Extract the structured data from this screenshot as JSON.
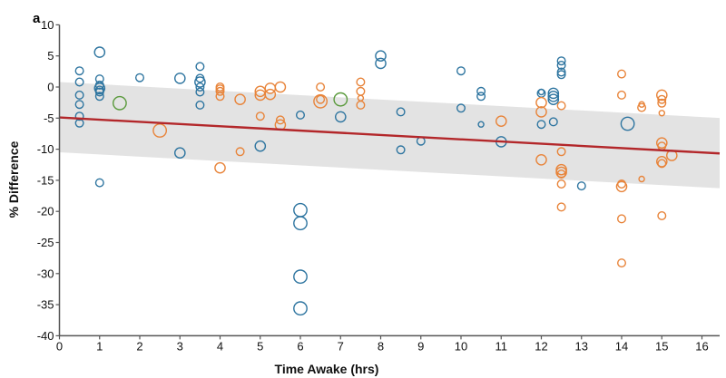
{
  "chart_data": {
    "type": "scatter",
    "panel_label": "a",
    "title": "",
    "xlabel": "Time Awake (hrs)",
    "ylabel": "% Difference",
    "xlim": [
      0,
      16.5
    ],
    "ylim": [
      -40,
      10
    ],
    "xticks": [
      0,
      1,
      2,
      3,
      4,
      5,
      6,
      7,
      8,
      9,
      10,
      11,
      12,
      13,
      14,
      15,
      16
    ],
    "yticks": [
      10,
      5,
      0,
      -5,
      -10,
      -15,
      -20,
      -25,
      -30,
      -35,
      -40
    ],
    "grid": false,
    "legend": "none",
    "colors": {
      "blue": "#2e75a0",
      "orange": "#e8843a",
      "green": "#5a9a3c",
      "fit_line": "#b3272a",
      "band": "#e3e3e3",
      "axis": "#555555"
    },
    "fit": {
      "x": [
        0,
        16.5
      ],
      "y": [
        -4.9,
        -10.7
      ],
      "ci_upper": [
        0.8,
        -5.0
      ],
      "ci_lower": [
        -10.5,
        -16.3
      ]
    },
    "points": [
      {
        "x": 0.5,
        "y": 2.6,
        "s": "s",
        "c": "blue"
      },
      {
        "x": 0.5,
        "y": 0.8,
        "s": "s",
        "c": "blue"
      },
      {
        "x": 0.5,
        "y": -1.3,
        "s": "s",
        "c": "blue"
      },
      {
        "x": 0.5,
        "y": -2.8,
        "s": "s",
        "c": "blue"
      },
      {
        "x": 0.5,
        "y": -4.7,
        "s": "s",
        "c": "blue"
      },
      {
        "x": 0.5,
        "y": -5.8,
        "s": "s",
        "c": "blue"
      },
      {
        "x": 1,
        "y": 5.6,
        "s": "m",
        "c": "blue"
      },
      {
        "x": 1,
        "y": 1.3,
        "s": "s",
        "c": "blue"
      },
      {
        "x": 1,
        "y": 0.3,
        "s": "s",
        "c": "blue"
      },
      {
        "x": 1,
        "y": -0.2,
        "s": "m",
        "c": "blue"
      },
      {
        "x": 1,
        "y": -0.5,
        "s": "s",
        "c": "blue"
      },
      {
        "x": 1,
        "y": -0.8,
        "s": "s",
        "c": "blue"
      },
      {
        "x": 1,
        "y": -1.5,
        "s": "s",
        "c": "blue"
      },
      {
        "x": 1,
        "y": -15.4,
        "s": "s",
        "c": "blue"
      },
      {
        "x": 1.5,
        "y": -2.6,
        "s": "l",
        "c": "green"
      },
      {
        "x": 2,
        "y": 1.5,
        "s": "s",
        "c": "blue"
      },
      {
        "x": 2.5,
        "y": -7,
        "s": "l",
        "c": "orange"
      },
      {
        "x": 3,
        "y": 1.4,
        "s": "m",
        "c": "blue"
      },
      {
        "x": 3,
        "y": -10.6,
        "s": "m",
        "c": "blue"
      },
      {
        "x": 3.5,
        "y": 3.3,
        "s": "s",
        "c": "blue"
      },
      {
        "x": 3.5,
        "y": 1.4,
        "s": "s",
        "c": "blue"
      },
      {
        "x": 3.5,
        "y": 0.8,
        "s": "m",
        "c": "blue"
      },
      {
        "x": 3.5,
        "y": 0,
        "s": "s",
        "c": "blue"
      },
      {
        "x": 3.5,
        "y": -0.8,
        "s": "s",
        "c": "blue"
      },
      {
        "x": 3.5,
        "y": -2.9,
        "s": "s",
        "c": "blue"
      },
      {
        "x": 4,
        "y": 0,
        "s": "s",
        "c": "orange"
      },
      {
        "x": 4,
        "y": -0.3,
        "s": "s",
        "c": "orange"
      },
      {
        "x": 4,
        "y": -0.7,
        "s": "s",
        "c": "orange"
      },
      {
        "x": 4,
        "y": -1.5,
        "s": "s",
        "c": "orange"
      },
      {
        "x": 4,
        "y": -13,
        "s": "m",
        "c": "orange"
      },
      {
        "x": 4.5,
        "y": -2,
        "s": "m",
        "c": "orange"
      },
      {
        "x": 4.5,
        "y": -10.4,
        "s": "s",
        "c": "orange"
      },
      {
        "x": 5,
        "y": -0.7,
        "s": "m",
        "c": "orange"
      },
      {
        "x": 5,
        "y": -1.3,
        "s": "m",
        "c": "orange"
      },
      {
        "x": 5,
        "y": -4.7,
        "s": "s",
        "c": "orange"
      },
      {
        "x": 5,
        "y": -9.5,
        "s": "m",
        "c": "blue"
      },
      {
        "x": 5.25,
        "y": -0.2,
        "s": "m",
        "c": "orange"
      },
      {
        "x": 5.25,
        "y": -1.2,
        "s": "m",
        "c": "orange"
      },
      {
        "x": 5.5,
        "y": 0,
        "s": "m",
        "c": "orange"
      },
      {
        "x": 5.5,
        "y": -5.3,
        "s": "s",
        "c": "orange"
      },
      {
        "x": 5.5,
        "y": -6.1,
        "s": "m",
        "c": "orange"
      },
      {
        "x": 6,
        "y": -4.5,
        "s": "s",
        "c": "blue"
      },
      {
        "x": 6,
        "y": -19.8,
        "s": "l",
        "c": "blue"
      },
      {
        "x": 6,
        "y": -21.9,
        "s": "l",
        "c": "blue"
      },
      {
        "x": 6,
        "y": -30.5,
        "s": "l",
        "c": "blue"
      },
      {
        "x": 6,
        "y": -35.6,
        "s": "l",
        "c": "blue"
      },
      {
        "x": 6.5,
        "y": 0,
        "s": "s",
        "c": "orange"
      },
      {
        "x": 6.5,
        "y": -2,
        "s": "s",
        "c": "orange"
      },
      {
        "x": 6.5,
        "y": -2.3,
        "s": "l",
        "c": "orange"
      },
      {
        "x": 7,
        "y": -2,
        "s": "l",
        "c": "green"
      },
      {
        "x": 7,
        "y": -4.8,
        "s": "m",
        "c": "blue"
      },
      {
        "x": 7.5,
        "y": 0.8,
        "s": "s",
        "c": "orange"
      },
      {
        "x": 7.5,
        "y": -0.7,
        "s": "s",
        "c": "orange"
      },
      {
        "x": 7.5,
        "y": -1.8,
        "s": "xs",
        "c": "orange"
      },
      {
        "x": 7.5,
        "y": -2.9,
        "s": "s",
        "c": "orange"
      },
      {
        "x": 8,
        "y": 5,
        "s": "m",
        "c": "blue"
      },
      {
        "x": 8,
        "y": 3.8,
        "s": "m",
        "c": "blue"
      },
      {
        "x": 8.5,
        "y": -4,
        "s": "s",
        "c": "blue"
      },
      {
        "x": 8.5,
        "y": -10.1,
        "s": "s",
        "c": "blue"
      },
      {
        "x": 9,
        "y": -8.7,
        "s": "s",
        "c": "blue"
      },
      {
        "x": 10,
        "y": 2.6,
        "s": "s",
        "c": "blue"
      },
      {
        "x": 10,
        "y": -3.4,
        "s": "s",
        "c": "blue"
      },
      {
        "x": 10.5,
        "y": -0.7,
        "s": "s",
        "c": "blue"
      },
      {
        "x": 10.5,
        "y": -1.5,
        "s": "s",
        "c": "blue"
      },
      {
        "x": 10.5,
        "y": -6,
        "s": "xs",
        "c": "blue"
      },
      {
        "x": 11,
        "y": -5.5,
        "s": "m",
        "c": "orange"
      },
      {
        "x": 11,
        "y": -8.8,
        "s": "m",
        "c": "blue"
      },
      {
        "x": 12,
        "y": -0.8,
        "s": "xs",
        "c": "blue"
      },
      {
        "x": 12,
        "y": -1,
        "s": "s",
        "c": "blue"
      },
      {
        "x": 12,
        "y": -6,
        "s": "s",
        "c": "blue"
      },
      {
        "x": 12,
        "y": -2.5,
        "s": "m",
        "c": "orange"
      },
      {
        "x": 12,
        "y": -4,
        "s": "m",
        "c": "orange"
      },
      {
        "x": 12,
        "y": -11.7,
        "s": "m",
        "c": "orange"
      },
      {
        "x": 12.3,
        "y": -1,
        "s": "m",
        "c": "blue"
      },
      {
        "x": 12.3,
        "y": -1.5,
        "s": "m",
        "c": "blue"
      },
      {
        "x": 12.3,
        "y": -2,
        "s": "m",
        "c": "blue"
      },
      {
        "x": 12.3,
        "y": -5.6,
        "s": "s",
        "c": "blue"
      },
      {
        "x": 12.5,
        "y": 4.2,
        "s": "s",
        "c": "blue"
      },
      {
        "x": 12.5,
        "y": 3.5,
        "s": "s",
        "c": "blue"
      },
      {
        "x": 12.5,
        "y": 2.4,
        "s": "s",
        "c": "blue"
      },
      {
        "x": 12.5,
        "y": 2,
        "s": "s",
        "c": "blue"
      },
      {
        "x": 12.5,
        "y": -3,
        "s": "s",
        "c": "orange"
      },
      {
        "x": 12.5,
        "y": -10.4,
        "s": "s",
        "c": "orange"
      },
      {
        "x": 12.5,
        "y": -13.3,
        "s": "m",
        "c": "orange"
      },
      {
        "x": 12.5,
        "y": -13.7,
        "s": "m",
        "c": "orange"
      },
      {
        "x": 12.5,
        "y": -14,
        "s": "s",
        "c": "orange"
      },
      {
        "x": 12.5,
        "y": -15.6,
        "s": "s",
        "c": "orange"
      },
      {
        "x": 12.5,
        "y": -19.3,
        "s": "s",
        "c": "orange"
      },
      {
        "x": 13,
        "y": -15.9,
        "s": "s",
        "c": "blue"
      },
      {
        "x": 14,
        "y": 2.1,
        "s": "s",
        "c": "orange"
      },
      {
        "x": 14,
        "y": -1.3,
        "s": "s",
        "c": "orange"
      },
      {
        "x": 14,
        "y": -15.6,
        "s": "s",
        "c": "orange"
      },
      {
        "x": 14,
        "y": -16,
        "s": "m",
        "c": "orange"
      },
      {
        "x": 14,
        "y": -21.2,
        "s": "s",
        "c": "orange"
      },
      {
        "x": 14,
        "y": -28.3,
        "s": "s",
        "c": "orange"
      },
      {
        "x": 14.15,
        "y": -5.9,
        "s": "l",
        "c": "blue"
      },
      {
        "x": 14.5,
        "y": -2.8,
        "s": "xs",
        "c": "orange"
      },
      {
        "x": 14.5,
        "y": -3.3,
        "s": "s",
        "c": "orange"
      },
      {
        "x": 14.5,
        "y": -14.8,
        "s": "xs",
        "c": "orange"
      },
      {
        "x": 15,
        "y": -1.3,
        "s": "m",
        "c": "orange"
      },
      {
        "x": 15,
        "y": -2,
        "s": "s",
        "c": "orange"
      },
      {
        "x": 15,
        "y": -2.6,
        "s": "s",
        "c": "orange"
      },
      {
        "x": 15,
        "y": -4.2,
        "s": "xs",
        "c": "orange"
      },
      {
        "x": 15,
        "y": -9,
        "s": "m",
        "c": "orange"
      },
      {
        "x": 15,
        "y": -9.5,
        "s": "s",
        "c": "orange"
      },
      {
        "x": 15,
        "y": -12,
        "s": "m",
        "c": "orange"
      },
      {
        "x": 15,
        "y": -12.3,
        "s": "s",
        "c": "orange"
      },
      {
        "x": 15,
        "y": -20.7,
        "s": "s",
        "c": "orange"
      },
      {
        "x": 15.25,
        "y": -11,
        "s": "m",
        "c": "orange"
      }
    ]
  }
}
